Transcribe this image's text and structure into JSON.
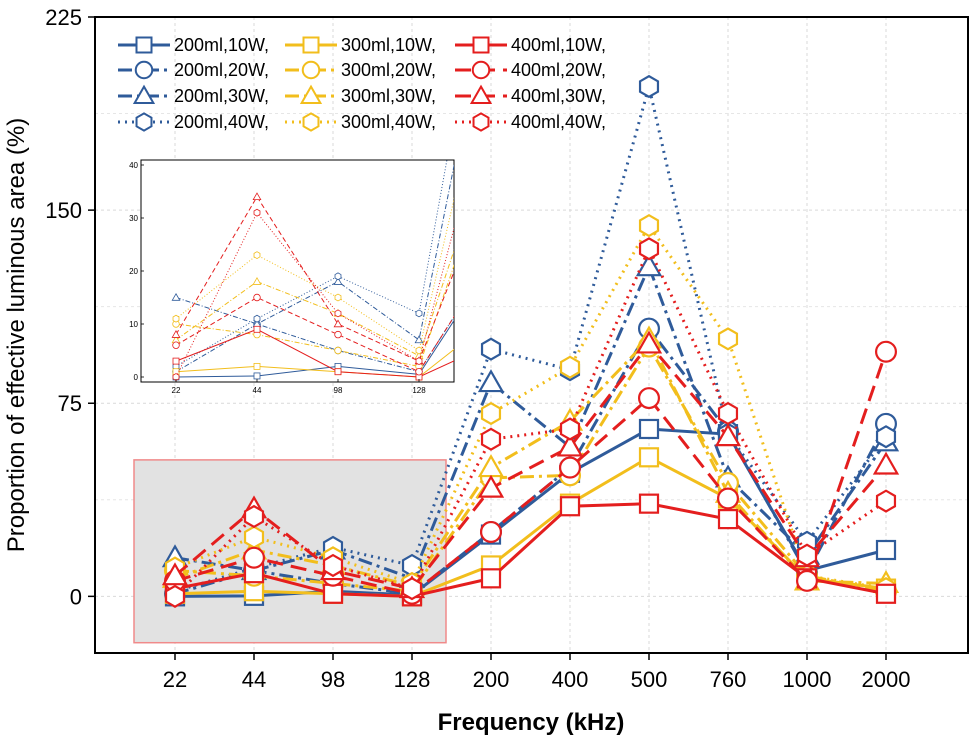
{
  "chart_data": {
    "type": "line",
    "xlabel": "Frequency (kHz)",
    "ylabel": "Proportion of effective luminous area (%)",
    "categories": [
      "22",
      "44",
      "98",
      "128",
      "200",
      "400",
      "500",
      "760",
      "1000",
      "2000"
    ],
    "ylim": [
      -22,
      225
    ],
    "yticks": [
      "0",
      "75",
      "150",
      "225"
    ],
    "grid": true,
    "legend_position": "top-left",
    "colors": {
      "200ml": "#2F5B9A",
      "300ml": "#F2BE1C",
      "400ml": "#E41E1E"
    },
    "series": [
      {
        "name": "200ml,10W,",
        "volume": "200ml",
        "marker": "square",
        "dash": "solid",
        "values": [
          0,
          0.2,
          2,
          0.5,
          24,
          48,
          65,
          63,
          10,
          18
        ]
      },
      {
        "name": "200ml,20W,",
        "volume": "200ml",
        "marker": "circle",
        "dash": "dashdot",
        "values": [
          1,
          10,
          5,
          1,
          25,
          50,
          104,
          64,
          9,
          67
        ]
      },
      {
        "name": "200ml,30W,",
        "volume": "200ml",
        "marker": "triangle",
        "dash": "dashdot",
        "values": [
          15,
          10,
          18,
          7,
          83,
          58,
          128,
          46,
          16,
          60
        ]
      },
      {
        "name": "200ml,40W,",
        "volume": "200ml",
        "marker": "hexagon",
        "dash": "dotted",
        "values": [
          2,
          11,
          19,
          12,
          96,
          88,
          198,
          63,
          21,
          62
        ]
      },
      {
        "name": "300ml,10W,",
        "volume": "300ml",
        "marker": "square",
        "dash": "solid",
        "values": [
          1,
          2,
          1,
          0,
          12,
          36,
          54,
          38,
          7,
          3
        ]
      },
      {
        "name": "300ml,20W,",
        "volume": "300ml",
        "marker": "circle",
        "dash": "dashdot",
        "values": [
          10,
          8,
          5,
          2,
          46,
          47,
          97,
          44,
          8,
          2
        ]
      },
      {
        "name": "300ml,30W,",
        "volume": "300ml",
        "marker": "triangle",
        "dash": "dashdot",
        "values": [
          7,
          18,
          12,
          4,
          50,
          68,
          100,
          40,
          6,
          5
        ]
      },
      {
        "name": "300ml,40W,",
        "volume": "300ml",
        "marker": "hexagon",
        "dash": "dotted",
        "values": [
          11,
          23,
          15,
          5,
          71,
          89,
          144,
          100,
          8,
          3
        ]
      },
      {
        "name": "400ml,10W,",
        "volume": "400ml",
        "marker": "square",
        "dash": "solid",
        "values": [
          3,
          9,
          1,
          0,
          7,
          35,
          36,
          30,
          7,
          1
        ]
      },
      {
        "name": "400ml,20W,",
        "volume": "400ml",
        "marker": "circle",
        "dash": "dashed",
        "values": [
          6,
          15,
          8,
          1,
          25,
          50,
          77,
          38,
          6,
          95
        ]
      },
      {
        "name": "400ml,30W,",
        "volume": "400ml",
        "marker": "triangle",
        "dash": "dashed",
        "values": [
          8,
          34,
          10,
          3,
          42,
          58,
          98,
          62,
          15,
          51
        ]
      },
      {
        "name": "400ml,40W,",
        "volume": "400ml",
        "marker": "hexagon",
        "dash": "dotted",
        "values": [
          0,
          31,
          12,
          3,
          61,
          65,
          135,
          71,
          16,
          37
        ]
      }
    ],
    "inset": {
      "xticks": [
        "22",
        "44",
        "98",
        "128"
      ],
      "yticks": [
        "0",
        "10",
        "20",
        "30",
        "40"
      ],
      "ylim": [
        0,
        40
      ]
    },
    "highlight_region": {
      "from_category": "22",
      "to_category": "128",
      "from_value": -18,
      "to_value": 53
    }
  }
}
